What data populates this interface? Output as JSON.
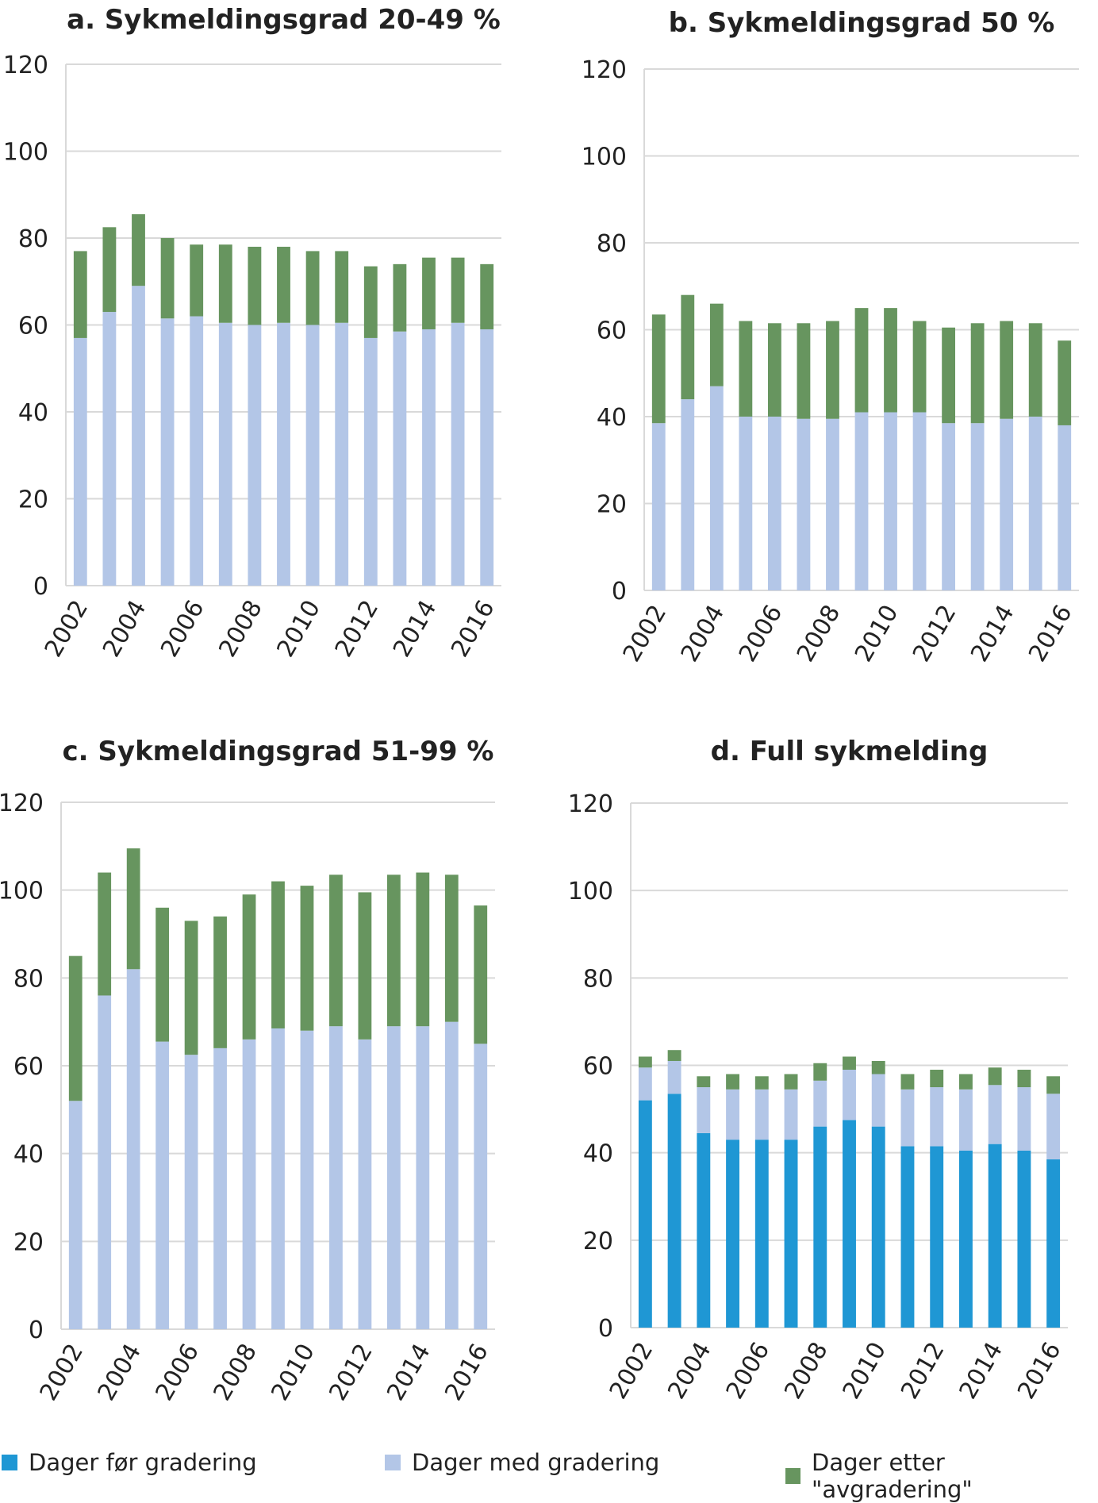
{
  "colors": {
    "before": "#1f97d4",
    "with": "#b3c6e7",
    "after": "#67955f",
    "grid": "#d9d9d9"
  },
  "legend": [
    {
      "label": "Dager før gradering",
      "color_key": "before"
    },
    {
      "label": "Dager med gradering",
      "color_key": "with"
    },
    {
      "label": "Dager etter \"avgradering\"",
      "color_key": "after"
    }
  ],
  "chart_data": [
    {
      "type": "bar",
      "stacked": true,
      "title": "a. Sykmeldingsgrad 20-49 %",
      "categories": [
        2002,
        2003,
        2004,
        2005,
        2006,
        2007,
        2008,
        2009,
        2010,
        2011,
        2012,
        2013,
        2014,
        2015,
        2016
      ],
      "x_tick_labels": [
        "2002",
        "2004",
        "2006",
        "2008",
        "2010",
        "2012",
        "2014",
        "2016"
      ],
      "y_ticks": [
        0,
        20,
        40,
        60,
        80,
        100,
        120
      ],
      "ylim": [
        0,
        120
      ],
      "grid": true,
      "series": [
        {
          "name": "Dager med gradering",
          "color_key": "with",
          "values": [
            57,
            63,
            69,
            61.5,
            62,
            60.5,
            60,
            60.5,
            60,
            60.5,
            57,
            58.5,
            59,
            60.5,
            59
          ]
        },
        {
          "name": "Dager etter \"avgradering\"",
          "color_key": "after",
          "values": [
            20,
            19.5,
            16.5,
            18.5,
            16.5,
            18,
            18,
            17.5,
            17,
            16.5,
            16.5,
            15.5,
            16.5,
            15,
            15
          ]
        }
      ]
    },
    {
      "type": "bar",
      "stacked": true,
      "title": "b. Sykmeldingsgrad 50 %",
      "categories": [
        2002,
        2003,
        2004,
        2005,
        2006,
        2007,
        2008,
        2009,
        2010,
        2011,
        2012,
        2013,
        2014,
        2015,
        2016
      ],
      "x_tick_labels": [
        "2002",
        "2004",
        "2006",
        "2008",
        "2010",
        "2012",
        "2014",
        "2016"
      ],
      "y_ticks": [
        0,
        20,
        40,
        60,
        80,
        100,
        120
      ],
      "ylim": [
        0,
        120
      ],
      "grid": true,
      "series": [
        {
          "name": "Dager med gradering",
          "color_key": "with",
          "values": [
            38.5,
            44,
            47,
            40,
            40,
            39.5,
            39.5,
            41,
            41,
            41,
            38.5,
            38.5,
            39.5,
            40,
            38
          ]
        },
        {
          "name": "Dager etter \"avgradering\"",
          "color_key": "after",
          "values": [
            25,
            24,
            19,
            22,
            21.5,
            22,
            22.5,
            24,
            24,
            21,
            22,
            23,
            22.5,
            21.5,
            19.5
          ]
        }
      ]
    },
    {
      "type": "bar",
      "stacked": true,
      "title": "c. Sykmeldingsgrad 51-99 %",
      "categories": [
        2002,
        2003,
        2004,
        2005,
        2006,
        2007,
        2008,
        2009,
        2010,
        2011,
        2012,
        2013,
        2014,
        2015,
        2016
      ],
      "x_tick_labels": [
        "2002",
        "2004",
        "2006",
        "2008",
        "2010",
        "2012",
        "2014",
        "2016"
      ],
      "y_ticks": [
        0,
        20,
        40,
        60,
        80,
        100,
        120
      ],
      "ylim": [
        0,
        120
      ],
      "grid": true,
      "series": [
        {
          "name": "Dager med gradering",
          "color_key": "with",
          "values": [
            52,
            76,
            82,
            65.5,
            62.5,
            64,
            66,
            68.5,
            68,
            69,
            66,
            69,
            69,
            70,
            65
          ]
        },
        {
          "name": "Dager etter \"avgradering\"",
          "color_key": "after",
          "values": [
            33,
            28,
            27.5,
            30.5,
            30.5,
            30,
            33,
            33.5,
            33,
            34.5,
            33.5,
            34.5,
            35,
            33.5,
            31.5
          ]
        }
      ]
    },
    {
      "type": "bar",
      "stacked": true,
      "title": "d. Full sykmelding",
      "categories": [
        2002,
        2003,
        2004,
        2005,
        2006,
        2007,
        2008,
        2009,
        2010,
        2011,
        2012,
        2013,
        2014,
        2015,
        2016
      ],
      "x_tick_labels": [
        "2002",
        "2004",
        "2006",
        "2008",
        "2010",
        "2012",
        "2014",
        "2016"
      ],
      "y_ticks": [
        0,
        20,
        40,
        60,
        80,
        100,
        120
      ],
      "ylim": [
        0,
        120
      ],
      "grid": true,
      "series": [
        {
          "name": "Dager før gradering",
          "color_key": "before",
          "values": [
            52,
            53.5,
            44.5,
            43,
            43,
            43,
            46,
            47.5,
            46,
            41.5,
            41.5,
            40.5,
            42,
            40.5,
            38.5
          ]
        },
        {
          "name": "Dager med gradering",
          "color_key": "with",
          "values": [
            7.5,
            7.5,
            10.5,
            11.5,
            11.5,
            11.5,
            10.5,
            11.5,
            12,
            13,
            13.5,
            14,
            13.5,
            14.5,
            15
          ]
        },
        {
          "name": "Dager etter \"avgradering\"",
          "color_key": "after",
          "values": [
            2.5,
            2.5,
            2.5,
            3.5,
            3,
            3.5,
            4,
            3,
            3,
            3.5,
            4,
            3.5,
            4,
            4,
            4
          ]
        }
      ]
    }
  ]
}
